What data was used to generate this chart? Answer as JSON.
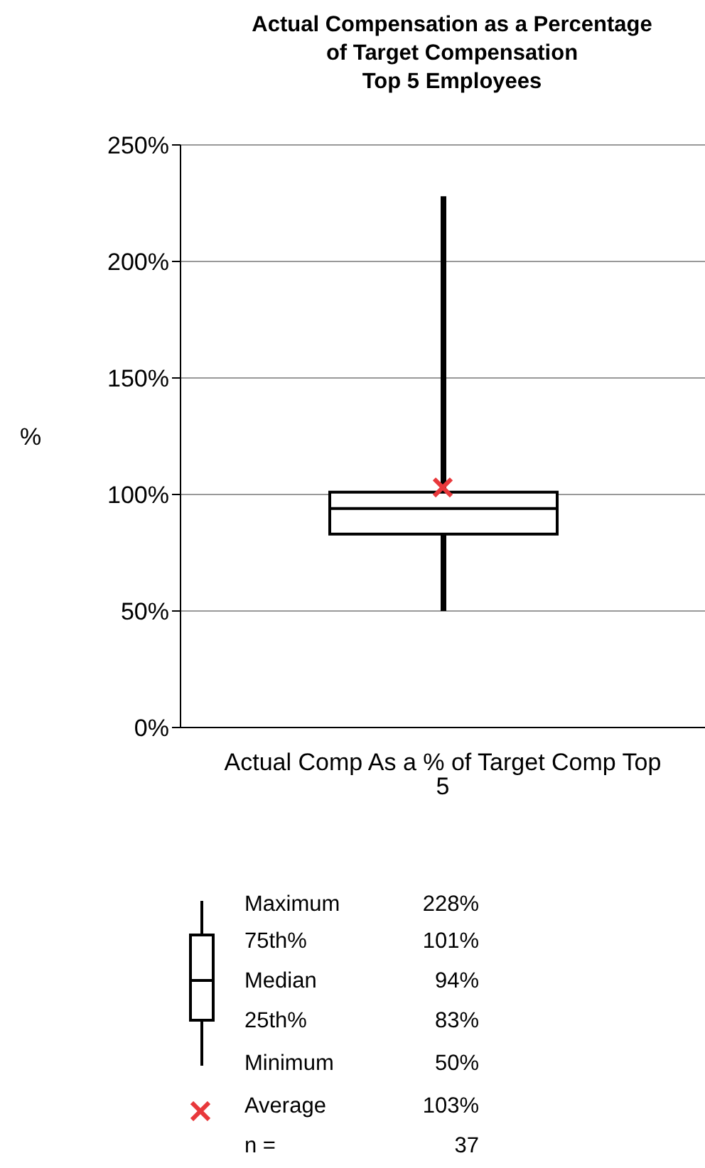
{
  "chart_data": {
    "type": "box",
    "title": "Actual Compensation as a Percentage\nof Target Compensation\nTop 5 Employees",
    "ylabel": "%",
    "categories": [
      "Actual Comp As a % of Target Comp Top 5"
    ],
    "boxes": [
      {
        "low": 50,
        "q1": 83,
        "median": 94,
        "q3": 101,
        "high": 228,
        "mean": 103
      }
    ],
    "ylim": [
      0,
      250
    ],
    "yticks": [
      {
        "value": 0,
        "label": "0%"
      },
      {
        "value": 50,
        "label": "50%"
      },
      {
        "value": 100,
        "label": "100%"
      },
      {
        "value": 150,
        "label": "150%"
      },
      {
        "value": 200,
        "label": "200%"
      },
      {
        "value": 250,
        "label": "250%"
      }
    ],
    "grid": "y",
    "marker": "cross",
    "annotations": [
      "Maximum 228%",
      "75th% 101%",
      "Median 94%",
      "25th% 83%",
      "Minimum 50%",
      "Average 103%",
      "n = 37"
    ]
  }
}
